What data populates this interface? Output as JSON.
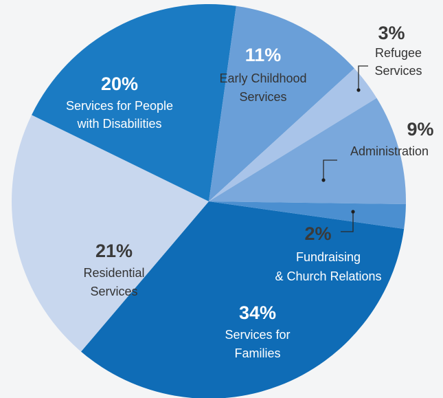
{
  "chart_data": {
    "type": "pie",
    "slices": [
      {
        "pct_label": "34%",
        "label_lines": [
          "Services for",
          "Families"
        ],
        "value": 34,
        "color": "#0f6cb6"
      },
      {
        "pct_label": "21%",
        "label_lines": [
          "Residential",
          "Services"
        ],
        "value": 21,
        "color": "#c8d7ee"
      },
      {
        "pct_label": "20%",
        "label_lines": [
          "Services for People",
          "with Disabilities"
        ],
        "value": 20,
        "color": "#1b7bc3"
      },
      {
        "pct_label": "11%",
        "label_lines": [
          "Early Childhood",
          "Services"
        ],
        "value": 11,
        "color": "#6a9fd8"
      },
      {
        "pct_label": "3%",
        "label_lines": [
          "Refugee",
          "Services"
        ],
        "value": 3,
        "color": "#a9c4e9"
      },
      {
        "pct_label": "9%",
        "label_lines": [
          "Administration"
        ],
        "value": 9,
        "color": "#7aa8dc"
      },
      {
        "pct_label": "2%",
        "label_lines": [
          "Fundraising",
          "& Church Relations"
        ],
        "value": 2,
        "color": "#4b8fd0"
      }
    ]
  }
}
